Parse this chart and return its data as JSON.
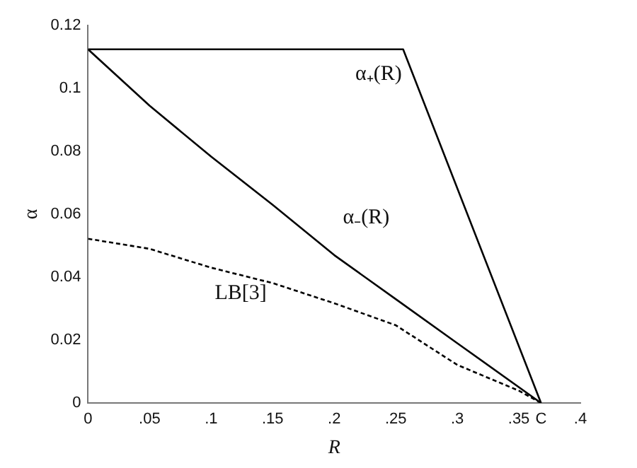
{
  "chart_data": {
    "type": "line",
    "xlabel": "R",
    "ylabel": "α",
    "xlim": [
      0,
      0.4
    ],
    "ylim": [
      0,
      0.12
    ],
    "xticks": [
      0,
      {
        "value": 0.05,
        "label": ".05"
      },
      {
        "value": 0.1,
        "label": ".1"
      },
      {
        "value": 0.15,
        "label": ".15"
      },
      {
        "value": 0.2,
        "label": ".2"
      },
      {
        "value": 0.25,
        "label": ".25"
      },
      {
        "value": 0.3,
        "label": ".3"
      },
      {
        "value": 0.35,
        "label": ".35"
      },
      {
        "value": 0.368,
        "label": "C"
      },
      {
        "value": 0.4,
        "label": ".4"
      }
    ],
    "yticks": [
      0,
      0.02,
      0.04,
      0.06,
      0.08,
      0.1,
      0.12
    ],
    "grid": false,
    "legend": false,
    "marker": "none",
    "series": [
      {
        "color": "#000000",
        "line_style": "solid",
        "x": [
          0,
          0.256,
          0.368
        ],
        "values": [
          0.1124,
          0.1124,
          0
        ]
      },
      {
        "color": "#000000",
        "line_style": "solid",
        "x": [
          0,
          0.05,
          0.1,
          0.15,
          0.2,
          0.25,
          0.3,
          0.368
        ],
        "values": [
          0.1124,
          0.0945,
          0.0783,
          0.063,
          0.047,
          0.033,
          0.019,
          0
        ]
      },
      {
        "color": "#000000",
        "line_style": "dashed",
        "x": [
          0,
          0.05,
          0.1,
          0.15,
          0.2,
          0.25,
          0.3,
          0.35,
          0.368
        ],
        "values": [
          0.0522,
          0.049,
          0.043,
          0.0381,
          0.0317,
          0.0247,
          0.0121,
          0.0039,
          0
        ]
      }
    ],
    "annotations": [
      "α₊(R)",
      "α₋(R)",
      "LB[3]"
    ]
  }
}
